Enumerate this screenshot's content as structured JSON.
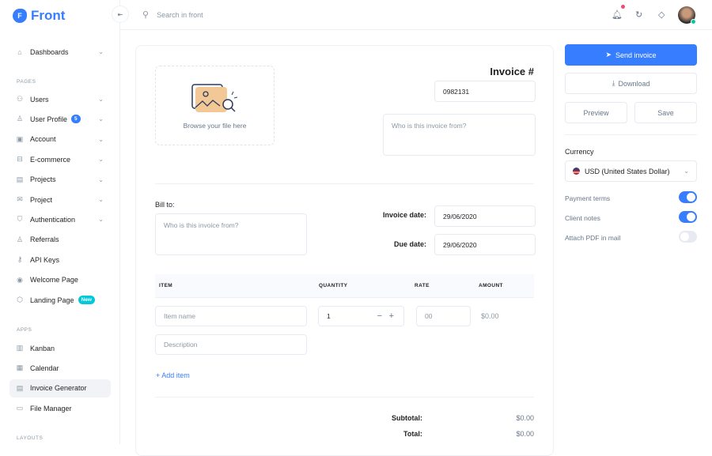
{
  "brand": {
    "logo_letter": "F",
    "name": "Front"
  },
  "sidebar": {
    "dashboards": "Dashboards",
    "sections": {
      "pages": "PAGES",
      "apps": "APPS",
      "layouts": "LAYOUTS"
    },
    "pages": [
      {
        "label": "Users",
        "icon": "users-icon",
        "chevron": true
      },
      {
        "label": "User Profile",
        "icon": "user-icon",
        "badge": "5",
        "chevron": true
      },
      {
        "label": "Account",
        "icon": "account-icon",
        "chevron": true
      },
      {
        "label": "E-commerce",
        "icon": "basket-icon",
        "chevron": true
      },
      {
        "label": "Projects",
        "icon": "projects-icon",
        "chevron": true
      },
      {
        "label": "Project",
        "icon": "project-icon",
        "chevron": true
      },
      {
        "label": "Authentication",
        "icon": "shield-icon",
        "chevron": true
      },
      {
        "label": "Referrals",
        "icon": "person-plus-icon"
      },
      {
        "label": "API Keys",
        "icon": "key-icon"
      },
      {
        "label": "Welcome Page",
        "icon": "eye-icon"
      },
      {
        "label": "Landing Page",
        "icon": "box-icon",
        "badge": "New"
      }
    ],
    "apps": [
      {
        "label": "Kanban",
        "icon": "kanban-icon"
      },
      {
        "label": "Calendar",
        "icon": "calendar-icon"
      },
      {
        "label": "Invoice Generator",
        "icon": "invoice-icon",
        "active": true
      },
      {
        "label": "File Manager",
        "icon": "folder-icon"
      }
    ]
  },
  "header": {
    "search_placeholder": "Search in front"
  },
  "invoice": {
    "upload_text": "Browse your file here",
    "title": "Invoice #",
    "number": "0982131",
    "from_placeholder": "Who is this invoice from?",
    "bill_to_label": "Bill to:",
    "bill_to_placeholder": "Who is this invoice from?",
    "invoice_date_label": "Invoice date:",
    "invoice_date": "29/06/2020",
    "due_date_label": "Due date:",
    "due_date": "29/06/2020",
    "columns": [
      "ITEM",
      "QUANTITY",
      "RATE",
      "AMOUNT"
    ],
    "item_placeholder": "Item name",
    "quantity": "1",
    "rate_placeholder": "00",
    "amount": "$0.00",
    "description_placeholder": "Description",
    "add_item": "+ Add item",
    "subtotal_label": "Subtotal:",
    "subtotal": "$0.00",
    "total_label": "Total:",
    "total": "$0.00"
  },
  "actions": {
    "send": "Send invoice",
    "download": "Download",
    "preview": "Preview",
    "save": "Save"
  },
  "settings": {
    "currency_label": "Currency",
    "currency": "USD (United States Dollar)",
    "toggles": [
      {
        "label": "Payment terms",
        "on": true
      },
      {
        "label": "Client notes",
        "on": true
      },
      {
        "label": "Attach PDF in mail",
        "on": false
      }
    ]
  },
  "colors": {
    "primary": "#377dff",
    "notification": "#ed4c78",
    "online": "#00c9a7"
  }
}
